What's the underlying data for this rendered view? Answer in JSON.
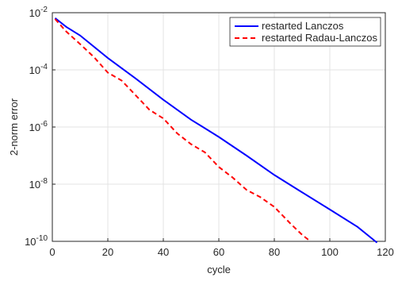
{
  "chart_data": {
    "type": "line",
    "x_label": "cycle",
    "y_label": "2-norm error",
    "log_y": true,
    "grid": true,
    "legend": "upper right",
    "xlim": [
      0,
      120
    ],
    "xticks": [
      0,
      20,
      40,
      60,
      80,
      100,
      120
    ],
    "ylim": [
      1e-10,
      0.01
    ],
    "yticks": [
      {
        "value": 1e-10,
        "label": "10",
        "exponent": "-10"
      },
      {
        "value": 1e-08,
        "label": "10",
        "exponent": "-8"
      },
      {
        "value": 1e-06,
        "label": "10",
        "exponent": "-6"
      },
      {
        "value": 0.0001,
        "label": "10",
        "exponent": "-4"
      },
      {
        "value": 0.01,
        "label": "10",
        "exponent": "-2"
      }
    ],
    "series": [
      {
        "name": "restarted Lanczos",
        "color": "#0000ff",
        "dash": "solid",
        "x": [
          1,
          5,
          10,
          20,
          30,
          40,
          50,
          60,
          70,
          80,
          90,
          100,
          110,
          117
        ],
        "values": [
          0.0065,
          0.0032,
          0.0016,
          0.00026,
          5e-05,
          9e-06,
          1.8e-06,
          4.5e-07,
          1e-07,
          2.1e-08,
          5.2e-09,
          1.3e-09,
          3.2e-10,
          9e-11
        ]
      },
      {
        "name": "restarted Radau-Lanczos",
        "color": "#ff0000",
        "dash": "dashed",
        "x": [
          1,
          5,
          10,
          15,
          20,
          25,
          30,
          35,
          40,
          45,
          50,
          55,
          60,
          65,
          70,
          75,
          80,
          86,
          90,
          93
        ],
        "values": [
          0.006,
          0.0022,
          0.0008,
          0.00028,
          8e-05,
          4.2e-05,
          1.3e-05,
          4e-06,
          2e-06,
          6e-07,
          2.5e-07,
          1.3e-07,
          4e-08,
          1.7e-08,
          6.3e-09,
          3.5e-09,
          1.6e-09,
          4e-10,
          1.7e-10,
          1e-10
        ]
      }
    ]
  }
}
